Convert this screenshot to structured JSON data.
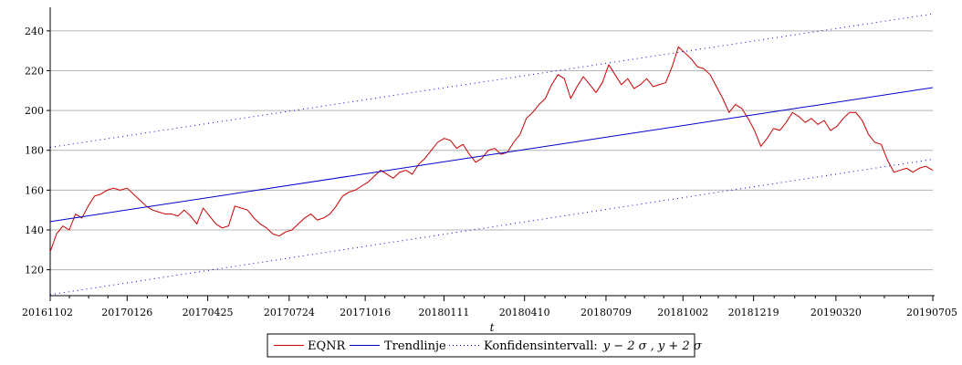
{
  "chart_data": {
    "type": "line",
    "title": "",
    "xlabel": "t",
    "ylabel": "",
    "ylim": [
      107,
      250
    ],
    "y_ticks": [
      120,
      140,
      160,
      180,
      200,
      220,
      240
    ],
    "x_tick_labels": [
      "20161102",
      "20170126",
      "20170425",
      "20170724",
      "20171016",
      "20180111",
      "20180410",
      "20180709",
      "20181002",
      "20181219",
      "20190320",
      "20190705"
    ],
    "x_tick_dates": [
      "2016-11-02",
      "2017-01-26",
      "2017-04-25",
      "2017-07-24",
      "2017-10-16",
      "2018-01-11",
      "2018-04-10",
      "2018-07-09",
      "2018-10-02",
      "2018-12-19",
      "2019-03-20",
      "2019-07-05"
    ],
    "grid": "horizontal",
    "legend": "bottom",
    "colors": {
      "eqnr": "#cc0000",
      "trend": "#0000cc",
      "conf": "#0000cc"
    },
    "series": [
      {
        "name": "EQNR",
        "style": "solid",
        "points": [
          [
            "2016-11-02",
            129
          ],
          [
            "2016-11-09",
            138
          ],
          [
            "2016-11-16",
            142
          ],
          [
            "2016-11-23",
            140
          ],
          [
            "2016-11-30",
            148
          ],
          [
            "2016-12-07",
            146
          ],
          [
            "2016-12-14",
            152
          ],
          [
            "2016-12-21",
            157
          ],
          [
            "2016-12-28",
            158
          ],
          [
            "2017-01-04",
            160
          ],
          [
            "2017-01-11",
            161
          ],
          [
            "2017-01-18",
            160
          ],
          [
            "2017-01-26",
            161
          ],
          [
            "2017-02-02",
            158
          ],
          [
            "2017-02-09",
            155
          ],
          [
            "2017-02-16",
            152
          ],
          [
            "2017-02-23",
            150
          ],
          [
            "2017-03-02",
            149
          ],
          [
            "2017-03-09",
            148
          ],
          [
            "2017-03-16",
            148
          ],
          [
            "2017-03-23",
            147
          ],
          [
            "2017-03-30",
            150
          ],
          [
            "2017-04-06",
            147
          ],
          [
            "2017-04-13",
            143
          ],
          [
            "2017-04-20",
            151
          ],
          [
            "2017-04-27",
            147
          ],
          [
            "2017-05-04",
            143
          ],
          [
            "2017-05-11",
            141
          ],
          [
            "2017-05-18",
            142
          ],
          [
            "2017-05-25",
            152
          ],
          [
            "2017-06-01",
            151
          ],
          [
            "2017-06-08",
            150
          ],
          [
            "2017-06-15",
            146
          ],
          [
            "2017-06-22",
            143
          ],
          [
            "2017-06-29",
            141
          ],
          [
            "2017-07-06",
            138
          ],
          [
            "2017-07-13",
            137
          ],
          [
            "2017-07-20",
            139
          ],
          [
            "2017-07-27",
            140
          ],
          [
            "2017-08-03",
            143
          ],
          [
            "2017-08-10",
            146
          ],
          [
            "2017-08-17",
            148
          ],
          [
            "2017-08-24",
            145
          ],
          [
            "2017-08-31",
            146
          ],
          [
            "2017-09-07",
            148
          ],
          [
            "2017-09-14",
            152
          ],
          [
            "2017-09-21",
            157
          ],
          [
            "2017-09-28",
            159
          ],
          [
            "2017-10-05",
            160
          ],
          [
            "2017-10-12",
            162
          ],
          [
            "2017-10-19",
            164
          ],
          [
            "2017-10-26",
            167
          ],
          [
            "2017-11-02",
            170
          ],
          [
            "2017-11-09",
            168
          ],
          [
            "2017-11-16",
            166
          ],
          [
            "2017-11-23",
            169
          ],
          [
            "2017-11-30",
            170
          ],
          [
            "2017-12-07",
            168
          ],
          [
            "2017-12-14",
            173
          ],
          [
            "2017-12-21",
            176
          ],
          [
            "2017-12-28",
            180
          ],
          [
            "2018-01-04",
            184
          ],
          [
            "2018-01-11",
            186
          ],
          [
            "2018-01-18",
            185
          ],
          [
            "2018-01-25",
            181
          ],
          [
            "2018-02-01",
            183
          ],
          [
            "2018-02-08",
            178
          ],
          [
            "2018-02-15",
            174
          ],
          [
            "2018-02-22",
            176
          ],
          [
            "2018-03-01",
            180
          ],
          [
            "2018-03-08",
            181
          ],
          [
            "2018-03-15",
            178
          ],
          [
            "2018-03-22",
            179
          ],
          [
            "2018-03-29",
            184
          ],
          [
            "2018-04-05",
            188
          ],
          [
            "2018-04-12",
            196
          ],
          [
            "2018-04-19",
            199
          ],
          [
            "2018-04-26",
            203
          ],
          [
            "2018-05-03",
            206
          ],
          [
            "2018-05-10",
            213
          ],
          [
            "2018-05-17",
            218
          ],
          [
            "2018-05-24",
            216
          ],
          [
            "2018-05-31",
            206
          ],
          [
            "2018-06-07",
            212
          ],
          [
            "2018-06-14",
            217
          ],
          [
            "2018-06-21",
            213
          ],
          [
            "2018-06-28",
            209
          ],
          [
            "2018-07-05",
            214
          ],
          [
            "2018-07-12",
            223
          ],
          [
            "2018-07-19",
            218
          ],
          [
            "2018-07-26",
            213
          ],
          [
            "2018-08-02",
            216
          ],
          [
            "2018-08-09",
            211
          ],
          [
            "2018-08-16",
            213
          ],
          [
            "2018-08-23",
            216
          ],
          [
            "2018-08-30",
            212
          ],
          [
            "2018-09-06",
            213
          ],
          [
            "2018-09-13",
            214
          ],
          [
            "2018-09-20",
            222
          ],
          [
            "2018-09-27",
            232
          ],
          [
            "2018-10-04",
            229
          ],
          [
            "2018-10-11",
            226
          ],
          [
            "2018-10-18",
            222
          ],
          [
            "2018-10-25",
            221
          ],
          [
            "2018-11-01",
            218
          ],
          [
            "2018-11-08",
            212
          ],
          [
            "2018-11-15",
            206
          ],
          [
            "2018-11-22",
            199
          ],
          [
            "2018-11-29",
            203
          ],
          [
            "2018-12-06",
            201
          ],
          [
            "2018-12-13",
            196
          ],
          [
            "2018-12-20",
            190
          ],
          [
            "2018-12-27",
            182
          ],
          [
            "2019-01-03",
            186
          ],
          [
            "2019-01-10",
            191
          ],
          [
            "2019-01-17",
            190
          ],
          [
            "2019-01-24",
            194
          ],
          [
            "2019-01-31",
            199
          ],
          [
            "2019-02-07",
            197
          ],
          [
            "2019-02-14",
            194
          ],
          [
            "2019-02-21",
            196
          ],
          [
            "2019-02-28",
            193
          ],
          [
            "2019-03-07",
            195
          ],
          [
            "2019-03-14",
            190
          ],
          [
            "2019-03-21",
            192
          ],
          [
            "2019-03-28",
            196
          ],
          [
            "2019-04-04",
            199
          ],
          [
            "2019-04-11",
            199
          ],
          [
            "2019-04-18",
            195
          ],
          [
            "2019-04-25",
            188
          ],
          [
            "2019-05-02",
            184
          ],
          [
            "2019-05-09",
            183
          ],
          [
            "2019-05-16",
            175
          ],
          [
            "2019-05-23",
            169
          ],
          [
            "2019-05-30",
            170
          ],
          [
            "2019-06-06",
            171
          ],
          [
            "2019-06-13",
            169
          ],
          [
            "2019-06-20",
            171
          ],
          [
            "2019-06-27",
            172
          ],
          [
            "2019-07-05",
            170
          ]
        ]
      },
      {
        "name": "Trendlinje",
        "style": "solid",
        "points": [
          [
            "2016-11-02",
            144.2
          ],
          [
            "2019-07-05",
            211.5
          ]
        ]
      },
      {
        "name": "Konfidensintervall: y − 2 σ , y + 2 σ",
        "style": "dotted",
        "points": [
          [
            "2016-11-02",
            107.5
          ],
          [
            "2019-07-05",
            175.5
          ]
        ]
      },
      {
        "name": "Konfidensintervall: y − 2 σ , y + 2 σ",
        "style": "dotted",
        "points": [
          [
            "2016-11-02",
            181.5
          ],
          [
            "2019-07-05",
            248.5
          ]
        ]
      }
    ]
  },
  "legend": {
    "eqnr_label": "EQNR",
    "trend_label": "Trendlinje",
    "conf_prefix": "Konfidensintervall:",
    "conf_formula": "y − 2 σ , y + 2 σ"
  }
}
